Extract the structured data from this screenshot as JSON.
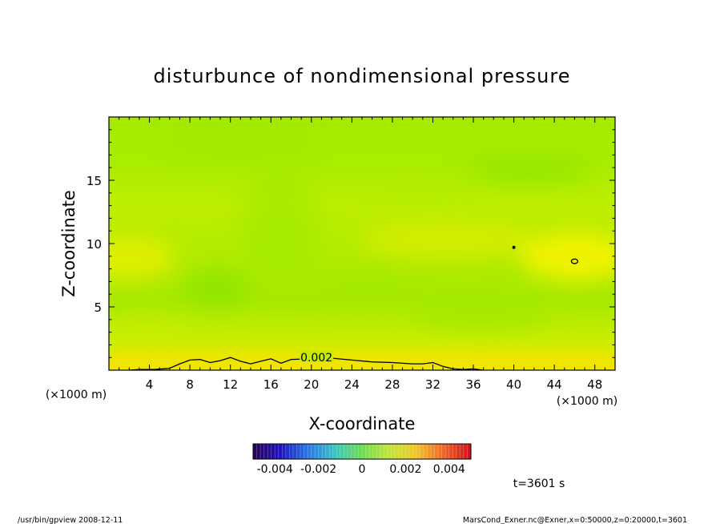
{
  "chart_data": {
    "type": "heatmap",
    "title": "disturbunce of nondimensional pressure",
    "xlabel": "X-coordinate",
    "ylabel": "Z-coordinate",
    "x_unit": "(×1000 m)",
    "y_unit": "(×1000 m)",
    "xlim": [
      0,
      50
    ],
    "ylim": [
      0,
      20
    ],
    "x_ticks": [
      4,
      8,
      12,
      16,
      20,
      24,
      28,
      32,
      36,
      40,
      44,
      48
    ],
    "y_ticks": [
      5,
      10,
      15
    ],
    "contour_label": "0.002",
    "contour_002": {
      "x": [
        2.0,
        3.0,
        4.5,
        6.0,
        7.0,
        8.0,
        9.0,
        10.0,
        11.0,
        12.0,
        13.0,
        14.0,
        15.0,
        16.0,
        17.0,
        18.0,
        20.0,
        22.0,
        24.0,
        26.0,
        28.0,
        30.0,
        31.0,
        32.0,
        33.0,
        34.0,
        35.0,
        36.0,
        37.0
      ],
      "z": [
        0.0,
        0.05,
        0.05,
        0.15,
        0.5,
        0.8,
        0.85,
        0.6,
        0.75,
        1.0,
        0.7,
        0.5,
        0.7,
        0.9,
        0.55,
        0.85,
        0.9,
        0.95,
        0.8,
        0.65,
        0.6,
        0.5,
        0.5,
        0.6,
        0.3,
        0.1,
        0.05,
        0.1,
        0.0
      ]
    },
    "small_contours": [
      {
        "x": 40.0,
        "z": 9.7
      },
      {
        "x": 46.0,
        "z": 8.6
      }
    ],
    "colorbar": {
      "tick_labels": [
        "-0.004",
        "-0.002",
        "0",
        "0.002",
        "0.004"
      ],
      "range": [
        -0.005,
        0.005
      ]
    },
    "time_label": "t=3601 s",
    "footer_left": "/usr/bin/gpview   2008-12-11",
    "footer_right": "MarsCond_Exner.nc@Exner,x=0:50000,z=0:20000,t=3601"
  },
  "colors": {
    "field_base": "#9fe800",
    "high_zone": "#f7f000",
    "low_zone": "#86e600"
  }
}
